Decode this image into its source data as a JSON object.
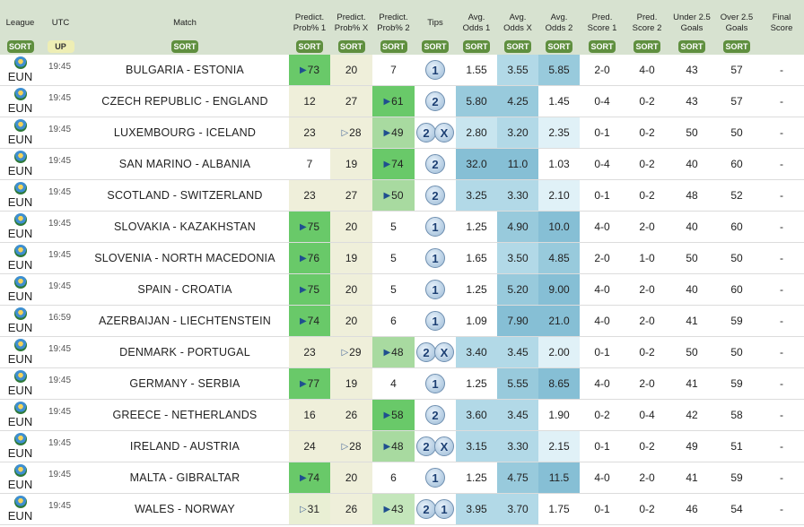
{
  "header": {
    "columns": [
      [
        "League"
      ],
      [
        "UTC"
      ],
      [
        "Match"
      ],
      [
        "Predict.",
        "Prob% 1"
      ],
      [
        "Predict.",
        "Prob% X"
      ],
      [
        "Predict.",
        "Prob% 2"
      ],
      [
        "Tips"
      ],
      [
        "Avg.",
        "Odds 1"
      ],
      [
        "Avg.",
        "Odds X"
      ],
      [
        "Avg.",
        "Odds 2"
      ],
      [
        "Pred.",
        "Score 1"
      ],
      [
        "Pred.",
        "Score 2"
      ],
      [
        "Under 2.5",
        "Goals"
      ],
      [
        "Over 2.5",
        "Goals"
      ],
      [
        "Final",
        "Score"
      ]
    ],
    "buttons": [
      "SORT",
      "UP",
      "SORT",
      "SORT",
      "SORT",
      "SORT",
      "SORT",
      "SORT",
      "SORT",
      "SORT",
      "SORT",
      "SORT",
      "SORT",
      "SORT",
      null
    ]
  },
  "rows": [
    {
      "league": "EUN",
      "time": "19:45",
      "match": "BULGARIA - ESTONIA",
      "prob": [
        73,
        20,
        7
      ],
      "prob_arrows": [
        "▶",
        null,
        null
      ],
      "tips": [
        "1"
      ],
      "odds": [
        "1.55",
        "3.55",
        "5.85"
      ],
      "score": [
        "2-0",
        "4-0"
      ],
      "goals": [
        43,
        57
      ],
      "final": "-"
    },
    {
      "league": "EUN",
      "time": "19:45",
      "match": "CZECH REPUBLIC - ENGLAND",
      "prob": [
        12,
        27,
        61
      ],
      "prob_arrows": [
        null,
        null,
        "▶"
      ],
      "tips": [
        "2"
      ],
      "odds": [
        "5.80",
        "4.25",
        "1.45"
      ],
      "score": [
        "0-4",
        "0-2"
      ],
      "goals": [
        43,
        57
      ],
      "final": "-"
    },
    {
      "league": "EUN",
      "time": "19:45",
      "match": "LUXEMBOURG - ICELAND",
      "prob": [
        23,
        28,
        49
      ],
      "prob_arrows": [
        null,
        "▷",
        "▶"
      ],
      "tips": [
        "2",
        "X"
      ],
      "odds": [
        "2.80",
        "3.20",
        "2.35"
      ],
      "score": [
        "0-1",
        "0-2"
      ],
      "goals": [
        50,
        50
      ],
      "final": "-"
    },
    {
      "league": "EUN",
      "time": "19:45",
      "match": "SAN MARINO - ALBANIA",
      "prob": [
        7,
        19,
        74
      ],
      "prob_arrows": [
        null,
        null,
        "▶"
      ],
      "tips": [
        "2"
      ],
      "odds": [
        "32.0",
        "11.0",
        "1.03"
      ],
      "score": [
        "0-4",
        "0-2"
      ],
      "goals": [
        40,
        60
      ],
      "final": "-"
    },
    {
      "league": "EUN",
      "time": "19:45",
      "match": "SCOTLAND - SWITZERLAND",
      "prob": [
        23,
        27,
        50
      ],
      "prob_arrows": [
        null,
        null,
        "▶"
      ],
      "tips": [
        "2"
      ],
      "odds": [
        "3.25",
        "3.30",
        "2.10"
      ],
      "score": [
        "0-1",
        "0-2"
      ],
      "goals": [
        48,
        52
      ],
      "final": "-"
    },
    {
      "league": "EUN",
      "time": "19:45",
      "match": "SLOVAKIA - KAZAKHSTAN",
      "prob": [
        75,
        20,
        5
      ],
      "prob_arrows": [
        "▶",
        null,
        null
      ],
      "tips": [
        "1"
      ],
      "odds": [
        "1.25",
        "4.90",
        "10.0"
      ],
      "score": [
        "4-0",
        "2-0"
      ],
      "goals": [
        40,
        60
      ],
      "final": "-"
    },
    {
      "league": "EUN",
      "time": "19:45",
      "match": "SLOVENIA - NORTH MACEDONIA",
      "prob": [
        76,
        19,
        5
      ],
      "prob_arrows": [
        "▶",
        null,
        null
      ],
      "tips": [
        "1"
      ],
      "odds": [
        "1.65",
        "3.50",
        "4.85"
      ],
      "score": [
        "2-0",
        "1-0"
      ],
      "goals": [
        50,
        50
      ],
      "final": "-"
    },
    {
      "league": "EUN",
      "time": "19:45",
      "match": "SPAIN - CROATIA",
      "prob": [
        75,
        20,
        5
      ],
      "prob_arrows": [
        "▶",
        null,
        null
      ],
      "tips": [
        "1"
      ],
      "odds": [
        "1.25",
        "5.20",
        "9.00"
      ],
      "score": [
        "4-0",
        "2-0"
      ],
      "goals": [
        40,
        60
      ],
      "final": "-"
    },
    {
      "league": "EUN",
      "time": "16:59",
      "match": "AZERBAIJAN - LIECHTENSTEIN",
      "prob": [
        74,
        20,
        6
      ],
      "prob_arrows": [
        "▶",
        null,
        null
      ],
      "tips": [
        "1"
      ],
      "odds": [
        "1.09",
        "7.90",
        "21.0"
      ],
      "score": [
        "4-0",
        "2-0"
      ],
      "goals": [
        41,
        59
      ],
      "final": "-"
    },
    {
      "league": "EUN",
      "time": "19:45",
      "match": "DENMARK - PORTUGAL",
      "prob": [
        23,
        29,
        48
      ],
      "prob_arrows": [
        null,
        "▷",
        "▶"
      ],
      "tips": [
        "2",
        "X"
      ],
      "odds": [
        "3.40",
        "3.45",
        "2.00"
      ],
      "score": [
        "0-1",
        "0-2"
      ],
      "goals": [
        50,
        50
      ],
      "final": "-"
    },
    {
      "league": "EUN",
      "time": "19:45",
      "match": "GERMANY - SERBIA",
      "prob": [
        77,
        19,
        4
      ],
      "prob_arrows": [
        "▶",
        null,
        null
      ],
      "tips": [
        "1"
      ],
      "odds": [
        "1.25",
        "5.55",
        "8.65"
      ],
      "score": [
        "4-0",
        "2-0"
      ],
      "goals": [
        41,
        59
      ],
      "final": "-"
    },
    {
      "league": "EUN",
      "time": "19:45",
      "match": "GREECE - NETHERLANDS",
      "prob": [
        16,
        26,
        58
      ],
      "prob_arrows": [
        null,
        null,
        "▶"
      ],
      "tips": [
        "2"
      ],
      "odds": [
        "3.60",
        "3.45",
        "1.90"
      ],
      "score": [
        "0-2",
        "0-4"
      ],
      "goals": [
        42,
        58
      ],
      "final": "-"
    },
    {
      "league": "EUN",
      "time": "19:45",
      "match": "IRELAND - AUSTRIA",
      "prob": [
        24,
        28,
        48
      ],
      "prob_arrows": [
        null,
        "▷",
        "▶"
      ],
      "tips": [
        "2",
        "X"
      ],
      "odds": [
        "3.15",
        "3.30",
        "2.15"
      ],
      "score": [
        "0-1",
        "0-2"
      ],
      "goals": [
        49,
        51
      ],
      "final": "-"
    },
    {
      "league": "EUN",
      "time": "19:45",
      "match": "MALTA - GIBRALTAR",
      "prob": [
        74,
        20,
        6
      ],
      "prob_arrows": [
        "▶",
        null,
        null
      ],
      "tips": [
        "1"
      ],
      "odds": [
        "1.25",
        "4.75",
        "11.5"
      ],
      "score": [
        "4-0",
        "2-0"
      ],
      "goals": [
        41,
        59
      ],
      "final": "-"
    },
    {
      "league": "EUN",
      "time": "19:45",
      "match": "WALES - NORWAY",
      "prob": [
        31,
        26,
        43
      ],
      "prob_arrows": [
        "▷",
        null,
        "▶"
      ],
      "tips": [
        "2",
        "1"
      ],
      "odds": [
        "3.95",
        "3.70",
        "1.75"
      ],
      "score": [
        "0-1",
        "0-2"
      ],
      "goals": [
        46,
        54
      ],
      "final": "-"
    }
  ]
}
